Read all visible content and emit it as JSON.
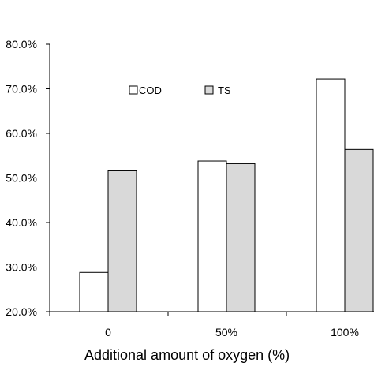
{
  "chart_data": {
    "type": "bar",
    "categories": [
      "0",
      "50%",
      "100%"
    ],
    "series": [
      {
        "name": "COD",
        "values": [
          28.8,
          53.8,
          72.2
        ]
      },
      {
        "name": "TS",
        "values": [
          51.6,
          53.2,
          56.4
        ]
      }
    ],
    "title": "",
    "xlabel": "Additional amount of oxygen (%)",
    "ylabel": "",
    "ylim": [
      20,
      80
    ],
    "yticks": [
      "20.0%",
      "30.0%",
      "40.0%",
      "50.0%",
      "60.0%",
      "70.0%",
      "80.0%"
    ],
    "grid": false,
    "legend_position": "top-left, inside plot",
    "colors": {
      "COD": "#ffffff",
      "TS": "#d9d9d9",
      "stroke": "#000000"
    }
  }
}
